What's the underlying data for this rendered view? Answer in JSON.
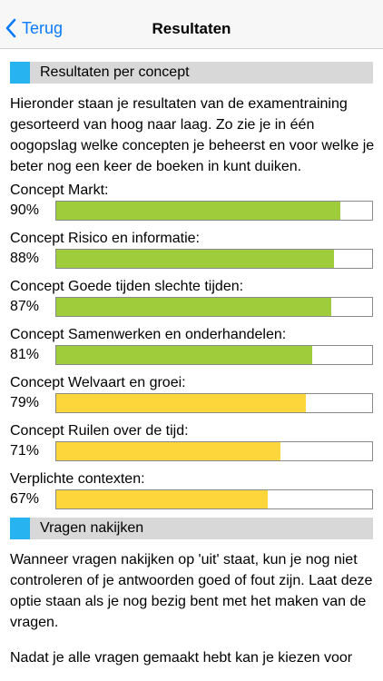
{
  "nav": {
    "back_label": "Terug",
    "title": "Resultaten"
  },
  "section1": {
    "title": "Resultaten per concept",
    "intro": "Hieronder staan je resultaten van de examentraining gesorteerd van hoog naar laag. Zo zie je in één oogopslag welke concepten je beheerst en voor welke je beter nog een keer de boeken in kunt duiken."
  },
  "colors": {
    "accent": "#27b2f0",
    "high": "#9fcc3b",
    "medium": "#fdd63c"
  },
  "concepts": [
    {
      "label": "Concept Markt:",
      "percent_label": "90%",
      "value": 90,
      "level": "high"
    },
    {
      "label": "Concept Risico en informatie:",
      "percent_label": "88%",
      "value": 88,
      "level": "high"
    },
    {
      "label": "Concept Goede tijden slechte tijden:",
      "percent_label": "87%",
      "value": 87,
      "level": "high"
    },
    {
      "label": "Concept Samenwerken en onderhandelen:",
      "percent_label": "81%",
      "value": 81,
      "level": "high"
    },
    {
      "label": "Concept Welvaart en groei:",
      "percent_label": "79%",
      "value": 79,
      "level": "medium"
    },
    {
      "label": "Concept Ruilen over de tijd:",
      "percent_label": "71%",
      "value": 71,
      "level": "medium"
    },
    {
      "label": "Verplichte contexten:",
      "percent_label": "67%",
      "value": 67,
      "level": "medium"
    }
  ],
  "section2": {
    "title": "Vragen nakijken",
    "para1": "Wanneer vragen nakijken op 'uit' staat, kun je nog niet controleren of je antwoorden goed of fout zijn. Laat deze optie staan als je nog bezig bent met het maken van de vragen.",
    "para2": "Nadat je alle vragen gemaakt hebt kan je kiezen voor"
  }
}
